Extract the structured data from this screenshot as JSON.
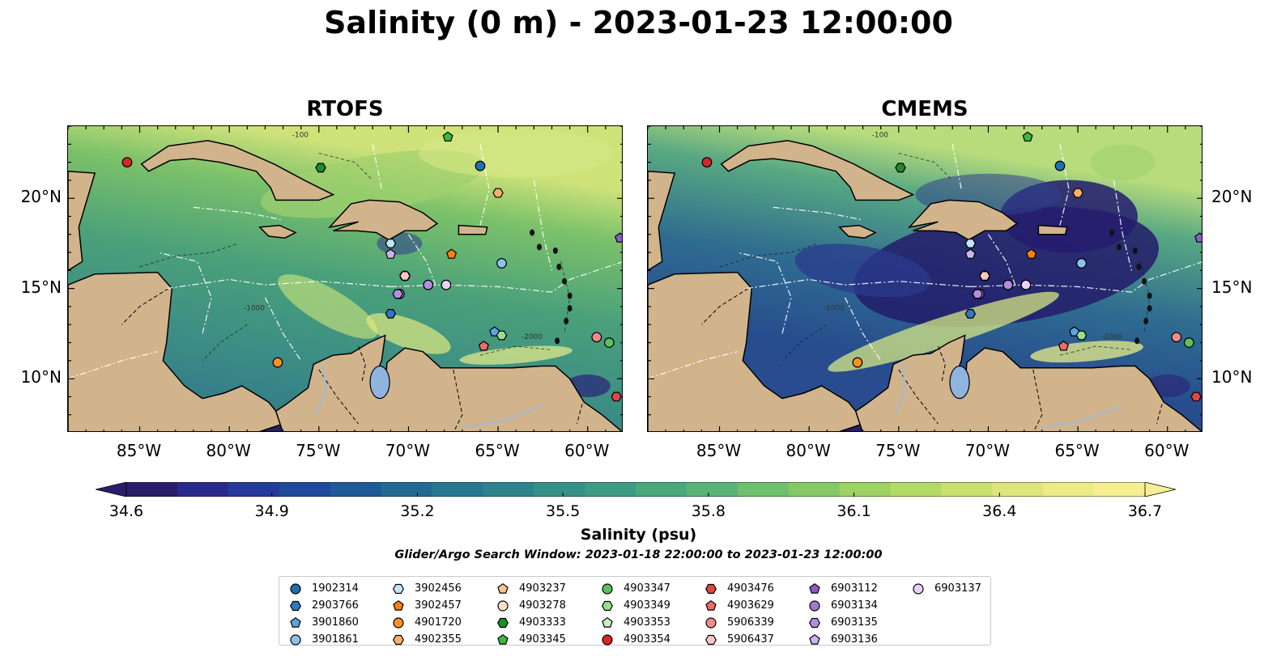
{
  "title": "Salinity (0 m) - 2023-01-23 12:00:00",
  "panels": [
    {
      "title": "RTOFS"
    },
    {
      "title": "CMEMS"
    }
  ],
  "axes": {
    "x_ticks": [
      "85°W",
      "80°W",
      "75°W",
      "70°W",
      "65°W",
      "60°W"
    ],
    "x_tick_values": [
      -85,
      -80,
      -75,
      -70,
      -65,
      -60
    ],
    "y_ticks": [
      "20°N",
      "15°N",
      "10°N"
    ],
    "y_tick_values": [
      20,
      15,
      10
    ],
    "lon_range": [
      -89,
      -58
    ],
    "lat_range": [
      7,
      24
    ],
    "contour_labels": [
      "-100",
      "-1000",
      "-2000"
    ]
  },
  "colorbar": {
    "label": "Salinity (psu)",
    "ticks": [
      "34.6",
      "34.9",
      "35.2",
      "35.5",
      "35.8",
      "36.1",
      "36.4",
      "36.7"
    ],
    "range": [
      34.6,
      36.7
    ],
    "colormap": "haline",
    "extend": "both"
  },
  "colors": {
    "land": "#d2b48c",
    "ocean_outside": "#2a1d6a",
    "rivers": "#a4b8d6",
    "lake": "#8fb4e0",
    "low_salinity": "#2a1d6a",
    "mid_salinity": "#3c8c88",
    "high_salinity": "#f6ec8c"
  },
  "search_window": "Glider/Argo Search Window: 2023-01-18 22:00:00 to 2023-01-23 12:00:00",
  "floats": [
    {
      "id": "1902314",
      "color": "#1f6fb4",
      "marker": "circle",
      "lon": -66.0,
      "lat": 21.8
    },
    {
      "id": "2903766",
      "color": "#2f79c0",
      "marker": "hexagon",
      "lon": -71.0,
      "lat": 13.6
    },
    {
      "id": "3901860",
      "color": "#5ea3e0",
      "marker": "pentagon",
      "lon": -65.2,
      "lat": 12.6
    },
    {
      "id": "3901861",
      "color": "#8fc2ea",
      "marker": "circle",
      "lon": -64.8,
      "lat": 16.4
    },
    {
      "id": "3902456",
      "color": "#c3e4f8",
      "marker": "hexagon",
      "lon": -71.0,
      "lat": 17.5
    },
    {
      "id": "3902457",
      "color": "#ff7f0e",
      "marker": "pentagon",
      "lon": -67.6,
      "lat": 16.9
    },
    {
      "id": "4901720",
      "color": "#f7902c",
      "marker": "circle",
      "lon": -77.3,
      "lat": 10.9
    },
    {
      "id": "4902355",
      "color": "#fbb068",
      "marker": "hexagon",
      "lon": -65.0,
      "lat": 20.3
    },
    {
      "id": "4903237",
      "color": "#fcc48e",
      "marker": "pentagon",
      "lon": -70.2,
      "lat": 15.7
    },
    {
      "id": "4903278",
      "color": "#fde0c6",
      "marker": "circle",
      "lon": -70.2,
      "lat": 15.7
    },
    {
      "id": "4903333",
      "color": "#1e8c2a",
      "marker": "hexagon",
      "lon": -74.9,
      "lat": 21.7
    },
    {
      "id": "4903345",
      "color": "#3eb83e",
      "marker": "pentagon",
      "lon": -67.8,
      "lat": 23.4
    },
    {
      "id": "4903347",
      "color": "#5cc05c",
      "marker": "circle",
      "lon": -58.8,
      "lat": 12.0
    },
    {
      "id": "4903349",
      "color": "#98df8a",
      "marker": "hexagon",
      "lon": -64.8,
      "lat": 12.4
    },
    {
      "id": "4903353",
      "color": "#c6f2bf",
      "marker": "pentagon",
      "lon": -70.2,
      "lat": 15.7
    },
    {
      "id": "4903354",
      "color": "#d62728",
      "marker": "circle",
      "lon": -85.7,
      "lat": 22.0
    },
    {
      "id": "4903476",
      "color": "#e04545",
      "marker": "hexagon",
      "lon": -58.4,
      "lat": 9.0
    },
    {
      "id": "4903629",
      "color": "#ef6a6a",
      "marker": "pentagon",
      "lon": -65.8,
      "lat": 11.8
    },
    {
      "id": "5906339",
      "color": "#f28a8a",
      "marker": "circle",
      "lon": -59.5,
      "lat": 12.3
    },
    {
      "id": "5906437",
      "color": "#f9c6c6",
      "marker": "hexagon",
      "lon": -70.2,
      "lat": 15.7
    },
    {
      "id": "6903112",
      "color": "#8c5cc4",
      "marker": "pentagon",
      "lon": -58.2,
      "lat": 17.8
    },
    {
      "id": "6903134",
      "color": "#a07ad0",
      "marker": "circle",
      "lon": -70.5,
      "lat": 14.7
    },
    {
      "id": "6903135",
      "color": "#b48ee0",
      "marker": "hexagon",
      "lon": -70.6,
      "lat": 14.7
    },
    {
      "id": "6903136",
      "color": "#ceb2ee",
      "marker": "pentagon",
      "lon": -71.0,
      "lat": 16.9
    },
    {
      "id": "6903137",
      "color": "#e8d0f8",
      "marker": "circle",
      "lon": -67.9,
      "lat": 15.2
    }
  ],
  "extra_points": [
    {
      "color": "#b48ee0",
      "marker": "circle",
      "lon": -68.9,
      "lat": 15.2
    }
  ]
}
